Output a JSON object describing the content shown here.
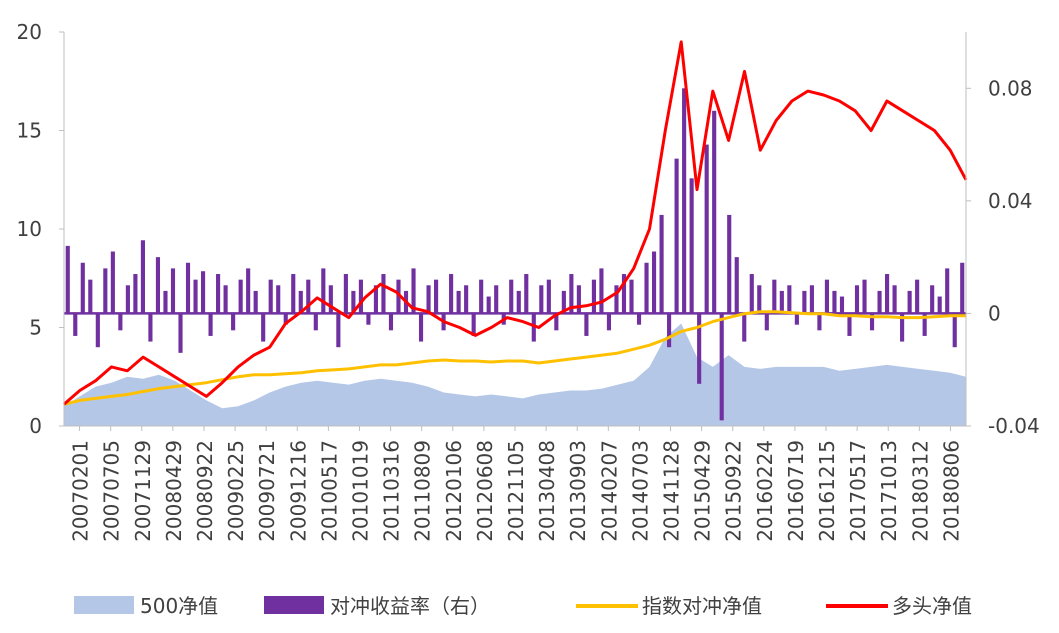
{
  "chart_data": {
    "type": "combo",
    "left_axis": {
      "min": 0,
      "max": 20,
      "ticks": [
        "0",
        "5",
        "10",
        "15",
        "20"
      ]
    },
    "right_axis": {
      "min": -0.04,
      "max": 0.1,
      "ticks": [
        "-0.04",
        "0",
        "0.04",
        "0.08"
      ]
    },
    "x_tick_labels": [
      "20070201",
      "20070705",
      "20071129",
      "20080429",
      "20080922",
      "20090225",
      "20090721",
      "20091216",
      "20100517",
      "20101019",
      "20110316",
      "20110809",
      "20120106",
      "20120608",
      "20121105",
      "20130408",
      "20130903",
      "20140207",
      "20140703",
      "20141128",
      "20150429",
      "20150922",
      "20160224",
      "20160719",
      "20161215",
      "20170517",
      "20171013",
      "20180312",
      "20180806"
    ],
    "legend": [
      {
        "key": "csi500",
        "label": "500净值",
        "kind": "area",
        "color": "#b4c7e7"
      },
      {
        "key": "hedge_return",
        "label": "对冲收益率（右）",
        "kind": "bar",
        "color": "#7030a0"
      },
      {
        "key": "hedge_nav",
        "label": "指数对冲净值",
        "kind": "line",
        "color": "#ffc000"
      },
      {
        "key": "long_nav",
        "label": "多头净值",
        "kind": "line",
        "color": "#ff0000"
      }
    ],
    "series": [
      {
        "name": "500净值",
        "axis": "left",
        "type": "area",
        "values": [
          1.0,
          1.5,
          2.0,
          2.2,
          2.5,
          2.4,
          2.6,
          2.3,
          1.8,
          1.3,
          0.9,
          1.0,
          1.3,
          1.7,
          2.0,
          2.2,
          2.3,
          2.2,
          2.1,
          2.3,
          2.4,
          2.3,
          2.2,
          2.0,
          1.7,
          1.6,
          1.5,
          1.6,
          1.5,
          1.4,
          1.6,
          1.7,
          1.8,
          1.8,
          1.9,
          2.1,
          2.3,
          3.0,
          4.5,
          5.2,
          3.5,
          3.0,
          3.6,
          3.0,
          2.9,
          3.0,
          3.0,
          3.0,
          3.0,
          2.8,
          2.9,
          3.0,
          3.1,
          3.0,
          2.9,
          2.8,
          2.7,
          2.5
        ]
      },
      {
        "name": "对冲收益率（右）",
        "axis": "right",
        "type": "bar",
        "values": [
          0.024,
          -0.008,
          0.018,
          0.012,
          -0.012,
          0.016,
          0.022,
          -0.006,
          0.01,
          0.014,
          0.026,
          -0.01,
          0.02,
          0.008,
          0.016,
          -0.014,
          0.018,
          0.012,
          0.015,
          -0.008,
          0.014,
          0.01,
          -0.006,
          0.012,
          0.016,
          0.008,
          -0.01,
          0.012,
          0.01,
          -0.004,
          0.014,
          0.008,
          0.012,
          -0.006,
          0.016,
          0.01,
          -0.012,
          0.014,
          0.008,
          0.012,
          -0.004,
          0.01,
          0.014,
          -0.006,
          0.012,
          0.008,
          0.016,
          -0.01,
          0.01,
          0.012,
          -0.006,
          0.014,
          0.008,
          0.01,
          -0.008,
          0.012,
          0.006,
          0.01,
          -0.004,
          0.012,
          0.008,
          0.014,
          -0.01,
          0.01,
          0.012,
          -0.006,
          0.008,
          0.014,
          0.01,
          -0.008,
          0.012,
          0.016,
          -0.006,
          0.01,
          0.014,
          0.012,
          -0.004,
          0.018,
          0.022,
          0.035,
          -0.012,
          0.055,
          0.08,
          0.048,
          -0.025,
          0.06,
          0.072,
          -0.038,
          0.035,
          0.02,
          -0.01,
          0.014,
          0.01,
          -0.006,
          0.012,
          0.008,
          0.01,
          -0.004,
          0.008,
          0.01,
          -0.006,
          0.012,
          0.008,
          0.006,
          -0.008,
          0.01,
          0.012,
          -0.006,
          0.008,
          0.014,
          0.01,
          -0.01,
          0.008,
          0.012,
          -0.008,
          0.01,
          0.006,
          0.016,
          -0.012,
          0.018
        ]
      },
      {
        "name": "指数对冲净值",
        "axis": "left",
        "type": "line",
        "values": [
          1.1,
          1.3,
          1.4,
          1.5,
          1.6,
          1.75,
          1.9,
          2.0,
          2.1,
          2.2,
          2.35,
          2.5,
          2.6,
          2.6,
          2.65,
          2.7,
          2.8,
          2.85,
          2.9,
          3.0,
          3.1,
          3.1,
          3.2,
          3.3,
          3.35,
          3.3,
          3.3,
          3.25,
          3.3,
          3.3,
          3.2,
          3.3,
          3.4,
          3.5,
          3.6,
          3.7,
          3.9,
          4.1,
          4.4,
          4.8,
          5.0,
          5.3,
          5.5,
          5.7,
          5.8,
          5.8,
          5.75,
          5.7,
          5.7,
          5.6,
          5.6,
          5.55,
          5.55,
          5.5,
          5.5,
          5.55,
          5.6,
          5.6
        ]
      },
      {
        "name": "多头净值",
        "axis": "left",
        "type": "line",
        "values": [
          1.1,
          1.8,
          2.3,
          3.0,
          2.8,
          3.5,
          3.0,
          2.5,
          2.0,
          1.5,
          2.2,
          3.0,
          3.6,
          4.0,
          5.2,
          5.8,
          6.5,
          6.0,
          5.5,
          6.5,
          7.2,
          6.8,
          6.0,
          5.8,
          5.3,
          5.0,
          4.6,
          5.0,
          5.5,
          5.3,
          5.0,
          5.6,
          6.0,
          6.1,
          6.3,
          6.8,
          8.0,
          10.0,
          15.0,
          19.5,
          12.0,
          17.0,
          14.5,
          18.0,
          14.0,
          15.5,
          16.5,
          17.0,
          16.8,
          16.5,
          16.0,
          15.0,
          16.5,
          16.0,
          15.5,
          15.0,
          14.0,
          12.5
        ]
      }
    ]
  }
}
